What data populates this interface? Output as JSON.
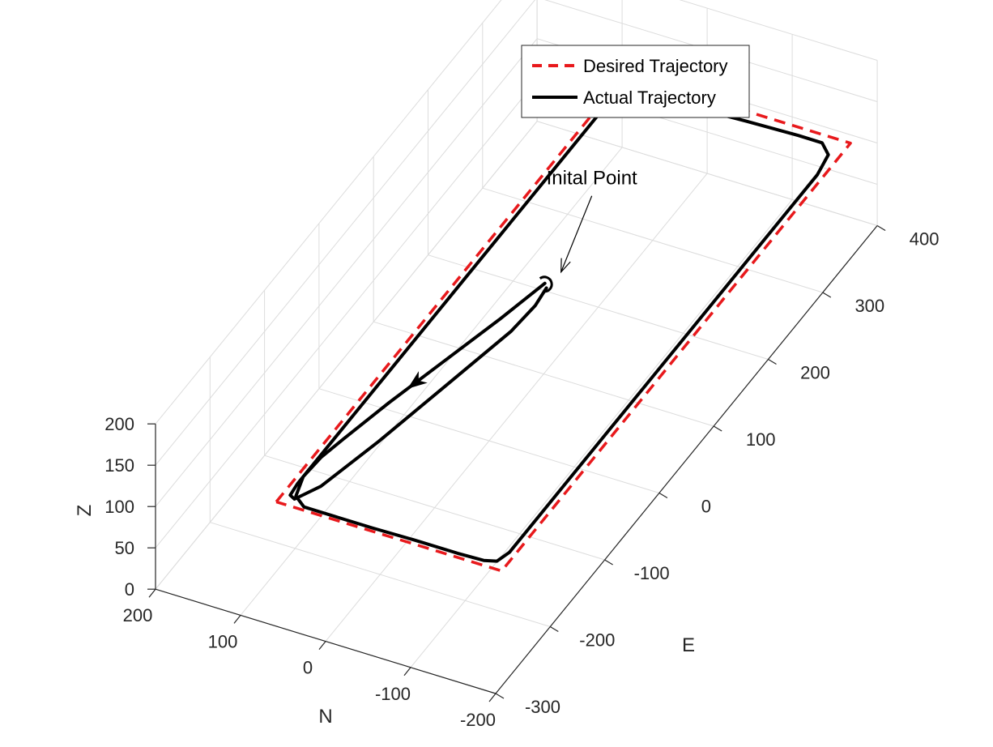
{
  "chart_data": {
    "type": "line",
    "projection": "3d",
    "grid": true,
    "legend_position": "top-right",
    "xlabel": "N",
    "ylabel": "E",
    "zlabel": "Z",
    "xlim": [
      -200,
      200
    ],
    "ylim": [
      -300,
      400
    ],
    "zlim": [
      0,
      200
    ],
    "x_ticks": [
      200,
      100,
      0,
      -100,
      -200
    ],
    "y_ticks": [
      -300,
      -200,
      -100,
      0,
      100,
      200,
      300,
      400
    ],
    "z_ticks": [
      0,
      50,
      100,
      150,
      200
    ],
    "series": [
      {
        "name": "Desired Trajectory",
        "style": "dashed",
        "color": "#e8191c",
        "points": [
          [
            90,
            -250,
            100
          ],
          [
            90,
            390,
            100
          ],
          [
            -175,
            390,
            100
          ],
          [
            -175,
            -250,
            100
          ],
          [
            90,
            -250,
            100
          ]
        ]
      },
      {
        "name": "Actual Trajectory",
        "style": "solid",
        "color": "#000000",
        "points": [
          [
            5,
            110,
            100
          ],
          [
            20,
            50,
            100
          ],
          [
            40,
            -20,
            100
          ],
          [
            60,
            -90,
            100
          ],
          [
            75,
            -150,
            100
          ],
          [
            82,
            -180,
            100
          ],
          [
            84,
            -210,
            100
          ],
          [
            76,
            -236,
            100
          ],
          [
            60,
            -246,
            100
          ],
          [
            20,
            -246,
            100
          ],
          [
            -20,
            -246,
            100
          ],
          [
            -70,
            -245,
            100
          ],
          [
            -120,
            -245,
            100
          ],
          [
            -150,
            -244,
            100
          ],
          [
            -163,
            -240,
            100
          ],
          [
            -168,
            -225,
            100
          ],
          [
            -168,
            -150,
            100
          ],
          [
            -168,
            -50,
            100
          ],
          [
            -168,
            50,
            100
          ],
          [
            -168,
            150,
            100
          ],
          [
            -168,
            250,
            100
          ],
          [
            -168,
            340,
            100
          ],
          [
            -163,
            368,
            100
          ],
          [
            -148,
            380,
            100
          ],
          [
            -120,
            380,
            100
          ],
          [
            -60,
            378,
            100
          ],
          [
            0,
            375,
            100
          ],
          [
            50,
            372,
            100
          ],
          [
            77,
            362,
            100
          ],
          [
            84,
            340,
            100
          ],
          [
            84,
            250,
            100
          ],
          [
            84,
            150,
            100
          ],
          [
            84,
            50,
            100
          ],
          [
            84,
            -50,
            100
          ],
          [
            84,
            -150,
            100
          ],
          [
            84,
            -220,
            100
          ],
          [
            82,
            -237,
            100
          ],
          [
            75,
            -240,
            100
          ],
          [
            60,
            -215,
            100
          ],
          [
            40,
            -140,
            100
          ],
          [
            20,
            -50,
            100
          ],
          [
            0,
            40,
            100
          ],
          [
            -3,
            80,
            100
          ],
          [
            0,
            105,
            100
          ]
        ]
      }
    ],
    "annotations": [
      {
        "text": "Inital Point",
        "point": [
          5,
          110,
          100
        ]
      }
    ]
  }
}
